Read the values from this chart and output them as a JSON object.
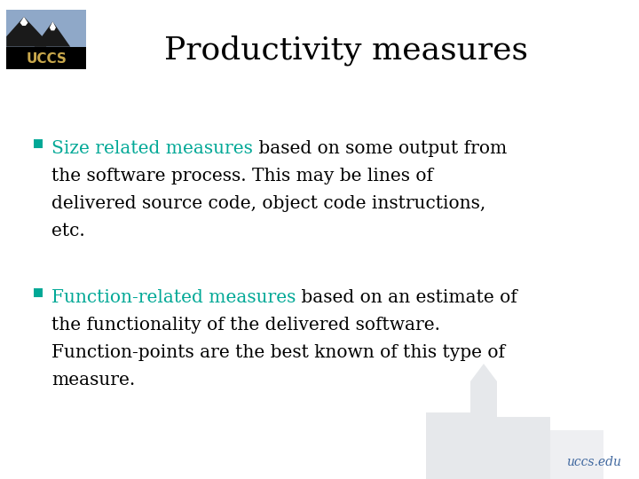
{
  "title": "Productivity measures",
  "title_fontsize": 26,
  "title_color": "#000000",
  "background_color": "#ffffff",
  "teal_color": "#00a896",
  "text_color": "#000000",
  "bullet1_highlight": "Size related measures",
  "bullet1_rest_line1": " based on some output from",
  "bullet1_line2": "the software process. This may be lines of",
  "bullet1_line3": "delivered source code, object code instructions,",
  "bullet1_line4": "etc.",
  "bullet2_highlight": "Function-related measures",
  "bullet2_rest_line1": " based on an estimate of",
  "bullet2_line2": "the functionality of the delivered software.",
  "bullet2_line3": "Function-points are the best known of this type of",
  "bullet2_line4": "measure.",
  "text_fontsize": 14.5,
  "footer_text": "uccs.edu",
  "footer_color": "#4169a0",
  "logo_bg": "#000000",
  "logo_mountain_dark": "#1a1a2e",
  "logo_mountain_light": "#8fa8c8",
  "logo_snow": "#ffffff",
  "logo_text_color": "#c9a84c",
  "bullet_color": "#00a896"
}
